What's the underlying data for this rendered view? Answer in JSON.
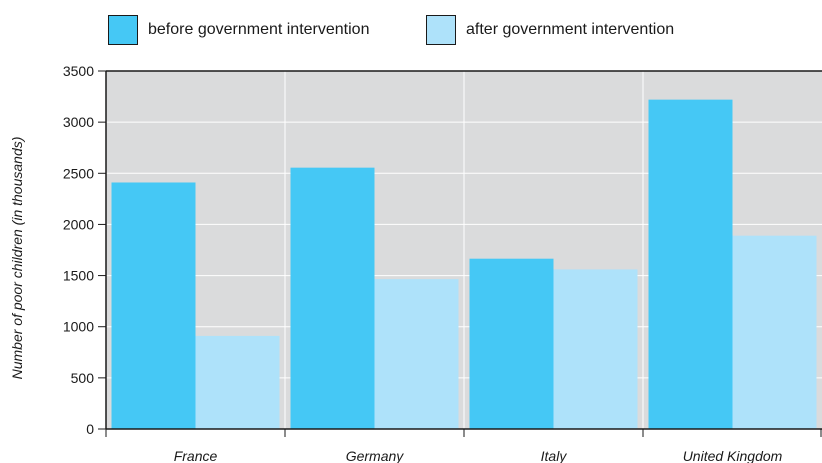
{
  "legend": [
    {
      "label": "before government intervention",
      "color": "#45c8f5"
    },
    {
      "label": "after government intervention",
      "color": "#aee2fa"
    }
  ],
  "chart_data": {
    "type": "bar",
    "title": "",
    "xlabel": "",
    "ylabel": "Number of poor children (in thousands)",
    "categories": [
      "France",
      "Germany",
      "Italy",
      "United Kingdom"
    ],
    "series": [
      {
        "name": "before government intervention",
        "color": "#45c8f5",
        "values": [
          2410,
          2555,
          1665,
          3220
        ]
      },
      {
        "name": "after government intervention",
        "color": "#aee2fa",
        "values": [
          910,
          1465,
          1560,
          1890
        ]
      }
    ],
    "ylim": [
      0,
      3500
    ],
    "yticks": [
      0,
      500,
      1000,
      1500,
      2000,
      2500,
      3000,
      3500
    ],
    "grid": true,
    "legend_position": "top",
    "plot_background": "#dadbdc"
  }
}
